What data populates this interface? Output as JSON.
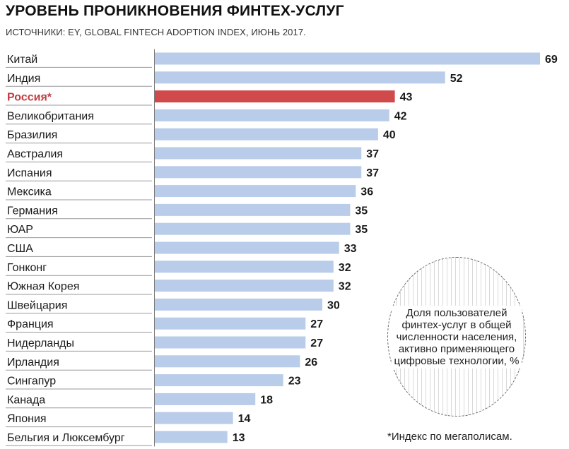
{
  "title": "УРОВЕНЬ ПРОНИКНОВЕНИЯ ФИНТЕХ-УСЛУГ",
  "subtitle": "ИСТОЧНИКИ: EY, GLOBAL FINTECH ADOPTION INDEX, ИЮНЬ 2017.",
  "legend_text": "Доля пользователей финтех-услуг в общей численности населения, активно применяющего цифровые технологии, %",
  "note": "*Индекс по мегаполисам.",
  "colors": {
    "bar": "#b9cce9",
    "highlight_bar": "#d04a4b",
    "highlight_label": "#c23c3f",
    "label": "#1a1a1a"
  },
  "chart_data": {
    "type": "bar",
    "orientation": "horizontal",
    "categories": [
      "Китай",
      "Индия",
      "Россия*",
      "Великобритания",
      "Бразилия",
      "Австралия",
      "Испания",
      "Мексика",
      "Германия",
      "ЮАР",
      "США",
      "Гонконг",
      "Южная Корея",
      "Швейцария",
      "Франция",
      "Нидерланды",
      "Ирландия",
      "Сингапур",
      "Канада",
      "Япония",
      "Бельгия и Люксембург"
    ],
    "values": [
      69,
      52,
      43,
      42,
      40,
      37,
      37,
      36,
      35,
      35,
      33,
      32,
      32,
      30,
      27,
      27,
      26,
      23,
      18,
      14,
      13
    ],
    "highlight": "Россия*",
    "xlim": [
      0,
      69
    ],
    "grid": false
  }
}
